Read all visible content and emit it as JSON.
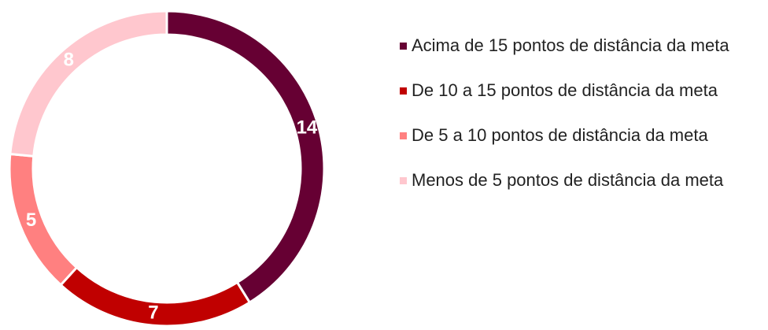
{
  "chart_data": {
    "type": "donut",
    "categories": [
      "Acima de 15 pontos de distância da meta",
      "De 10 a 15 pontos de distância da meta",
      "De 5 a 10 pontos de distância da meta",
      "Menos de 5 pontos de distância da meta"
    ],
    "values": [
      14,
      7,
      5,
      8
    ],
    "colors": [
      "#660033",
      "#c00000",
      "#ff8080",
      "#ffc7ce"
    ],
    "legend": "right"
  }
}
